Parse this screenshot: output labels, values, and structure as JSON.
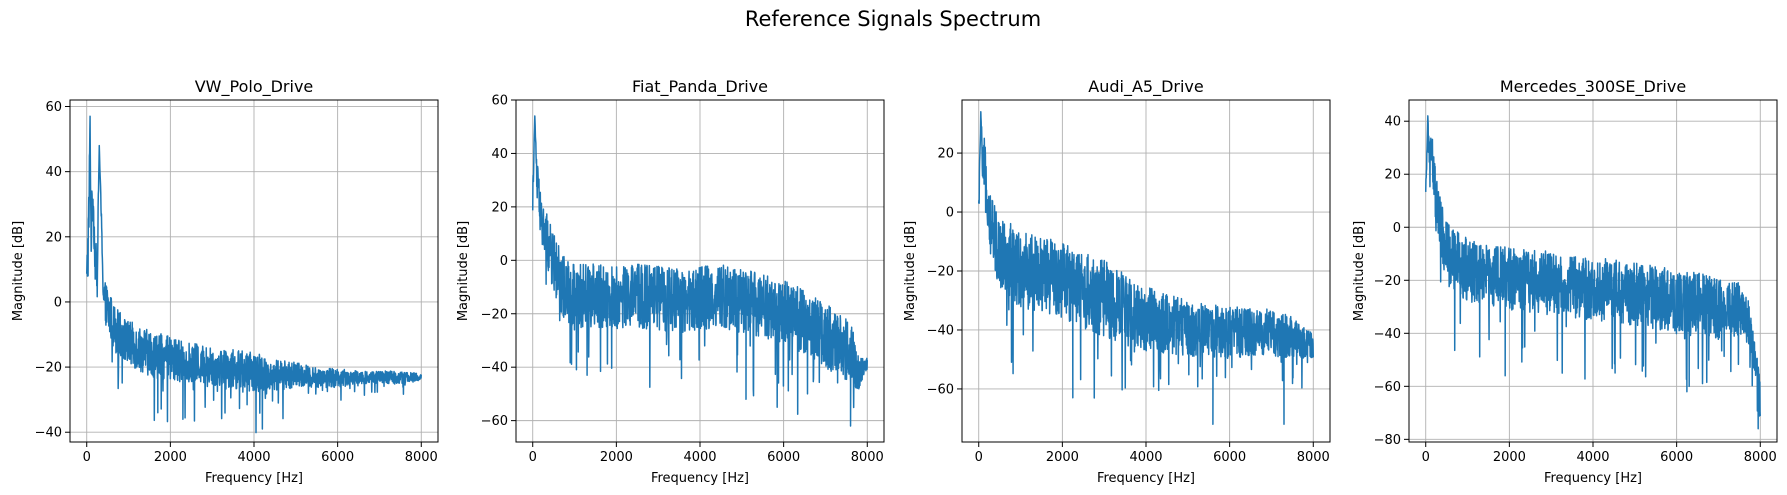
{
  "figure": {
    "suptitle": "Reference Signals Spectrum"
  },
  "style": {
    "line_color": "#1f77b4",
    "grid_color": "#b0b0b0",
    "spine_color": "#000000"
  },
  "chart_data": [
    {
      "type": "line",
      "title": "VW_Polo_Drive",
      "xlabel": "Frequency [Hz]",
      "ylabel": "Magnitude [dB]",
      "grid": true,
      "xlim": [
        -400,
        8400
      ],
      "ylim": [
        -43,
        62
      ],
      "xticks": [
        0,
        2000,
        4000,
        6000,
        8000
      ],
      "yticks": [
        -40,
        -20,
        0,
        20,
        40,
        60
      ],
      "series": [
        {
          "x": [
            0,
            50,
            80,
            100,
            150,
            200,
            250,
            300,
            400,
            500,
            700,
            1000,
            1500,
            2000,
            2500,
            3000,
            3500,
            4000,
            4500,
            5000,
            5500,
            6000,
            6500,
            7000,
            7500,
            8000
          ],
          "y": [
            7,
            25,
            57,
            22,
            33,
            14,
            10,
            48,
            3,
            -2,
            -8,
            -12,
            -15,
            -17,
            -18,
            -19,
            -20,
            -21,
            -22,
            -22,
            -23,
            -23,
            -23,
            -23,
            -23,
            -23
          ],
          "spread": [
            5,
            14,
            0,
            10,
            6,
            7,
            6,
            0,
            6,
            7,
            7,
            7,
            7,
            7,
            6,
            6,
            6,
            6,
            5,
            4,
            3,
            3,
            2,
            2,
            2,
            1
          ],
          "minima": [
            {
              "x": 2300,
              "y": -36
            },
            {
              "x": 4200,
              "y": -39
            },
            {
              "x": 1700,
              "y": -34
            }
          ]
        }
      ]
    },
    {
      "type": "line",
      "title": "Fiat_Panda_Drive",
      "xlabel": "Frequency [Hz]",
      "ylabel": "Magnitude [dB]",
      "grid": true,
      "xlim": [
        -400,
        8400
      ],
      "ylim": [
        -68,
        60
      ],
      "xticks": [
        0,
        2000,
        4000,
        6000,
        8000
      ],
      "yticks": [
        -60,
        -40,
        -20,
        0,
        20,
        40,
        60
      ],
      "series": [
        {
          "x": [
            0,
            50,
            100,
            150,
            200,
            300,
            500,
            700,
            1000,
            1500,
            2000,
            2500,
            3000,
            3500,
            4000,
            4500,
            5000,
            5500,
            6000,
            6500,
            7000,
            7300,
            7600,
            7800,
            8000
          ],
          "y": [
            23,
            54,
            30,
            25,
            15,
            10,
            0,
            -8,
            -12,
            -12,
            -13,
            -12,
            -13,
            -14,
            -13,
            -12,
            -14,
            -16,
            -18,
            -22,
            -27,
            -30,
            -33,
            -42,
            -38
          ],
          "spread": [
            5,
            0,
            8,
            8,
            8,
            10,
            11,
            12,
            12,
            12,
            12,
            12,
            12,
            12,
            12,
            12,
            12,
            12,
            12,
            12,
            12,
            12,
            12,
            6,
            3
          ],
          "minima": [
            {
              "x": 7600,
              "y": -62
            },
            {
              "x": 1300,
              "y": -43
            },
            {
              "x": 5100,
              "y": -52
            }
          ]
        }
      ]
    },
    {
      "type": "line",
      "title": "Audi_A5_Drive",
      "xlabel": "Frequency [Hz]",
      "ylabel": "Magnitude [dB]",
      "grid": true,
      "xlim": [
        -400,
        8400
      ],
      "ylim": [
        -78,
        38
      ],
      "xticks": [
        0,
        2000,
        4000,
        6000,
        8000
      ],
      "yticks": [
        -60,
        -40,
        -20,
        0,
        20
      ],
      "series": [
        {
          "x": [
            0,
            50,
            100,
            150,
            200,
            300,
            500,
            700,
            1000,
            1500,
            2000,
            2500,
            3000,
            3500,
            4000,
            4500,
            5000,
            5500,
            6000,
            6500,
            7000,
            7500,
            8000
          ],
          "y": [
            0,
            34,
            12,
            20,
            5,
            -5,
            -12,
            -15,
            -18,
            -20,
            -22,
            -25,
            -28,
            -32,
            -35,
            -37,
            -38,
            -39,
            -40,
            -40,
            -40,
            -42,
            -45
          ],
          "spread": [
            6,
            0,
            10,
            8,
            8,
            11,
            12,
            13,
            13,
            13,
            13,
            13,
            13,
            12,
            11,
            10,
            10,
            9,
            9,
            8,
            8,
            7,
            4
          ],
          "minima": [
            {
              "x": 2250,
              "y": -63
            },
            {
              "x": 5600,
              "y": -72
            },
            {
              "x": 7300,
              "y": -72
            }
          ]
        }
      ]
    },
    {
      "type": "line",
      "title": "Mercedes_300SE_Drive",
      "xlabel": "Frequency [Hz]",
      "ylabel": "Magnitude [dB]",
      "grid": true,
      "xlim": [
        -400,
        8400
      ],
      "ylim": [
        -81,
        48
      ],
      "xticks": [
        0,
        2000,
        4000,
        6000,
        8000
      ],
      "yticks": [
        -80,
        -60,
        -40,
        -20,
        0,
        20,
        40
      ],
      "series": [
        {
          "x": [
            0,
            50,
            100,
            150,
            200,
            300,
            500,
            700,
            1000,
            1500,
            2000,
            2500,
            3000,
            3500,
            4000,
            4500,
            5000,
            5500,
            6000,
            6500,
            7000,
            7500,
            7700,
            7800,
            7900,
            8000
          ],
          "y": [
            10,
            42,
            25,
            30,
            18,
            5,
            -8,
            -12,
            -15,
            -17,
            -18,
            -19,
            -20,
            -21,
            -22,
            -23,
            -24,
            -25,
            -27,
            -28,
            -29,
            -30,
            -34,
            -42,
            -52,
            -65
          ],
          "spread": [
            6,
            0,
            9,
            9,
            9,
            11,
            12,
            12,
            12,
            12,
            12,
            12,
            12,
            12,
            12,
            12,
            12,
            12,
            12,
            12,
            12,
            10,
            9,
            7,
            6,
            8
          ],
          "minima": [
            {
              "x": 1900,
              "y": -56
            },
            {
              "x": 6300,
              "y": -60
            },
            {
              "x": 7950,
              "y": -76
            }
          ]
        }
      ]
    }
  ]
}
